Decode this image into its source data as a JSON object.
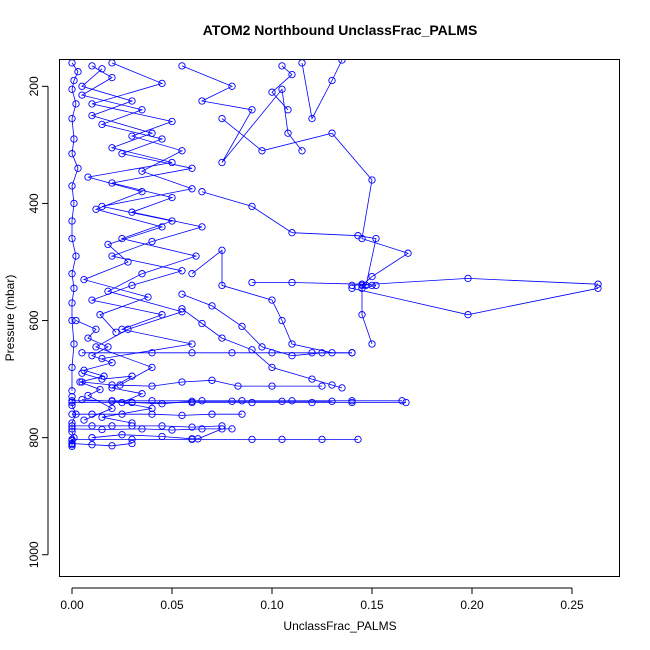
{
  "chart_data": {
    "type": "line",
    "title": "ATOM2 Northbound UnclassFrac_PALMS",
    "xlabel": "UnclassFrac_PALMS",
    "ylabel": "Pressure (mbar)",
    "xlim": [
      -0.006,
      0.274
    ],
    "ylim": [
      1038,
      155
    ],
    "y_reversed": true,
    "x_ticks": [
      0.0,
      0.05,
      0.1,
      0.15,
      0.2,
      0.25
    ],
    "x_tick_labels": [
      "0.00",
      "0.05",
      "0.10",
      "0.15",
      "0.20",
      "0.25"
    ],
    "y_ticks": [
      200,
      400,
      600,
      800,
      1000
    ],
    "y_tick_labels": [
      "200",
      "400",
      "600",
      "800",
      "1000"
    ],
    "grid": false,
    "legend": "none",
    "color": "#0000ff",
    "series": [
      {
        "x": [
          0.0,
          0.003,
          0.001,
          0.0,
          0.002,
          0.0,
          0.001,
          0.0,
          0.003,
          0.0,
          0.001,
          0.0,
          0.0,
          0.002,
          0.0,
          0.001,
          0.0,
          0.0,
          0.001,
          0.0,
          0.0
        ],
        "y": [
          160,
          175,
          190,
          205,
          230,
          255,
          290,
          315,
          340,
          370,
          400,
          430,
          460,
          490,
          520,
          545,
          570,
          600,
          640,
          680,
          720
        ]
      },
      {
        "x": [
          0.0,
          0.0,
          0.002,
          0.0,
          0.0,
          0.001,
          0.0,
          0.0,
          0.0,
          0.0
        ],
        "y": [
          730,
          745,
          760,
          775,
          790,
          800,
          805,
          810,
          812,
          815
        ]
      },
      {
        "x": [
          0.01,
          0.02,
          0.005,
          0.035,
          0.015,
          0.045,
          0.025,
          0.06,
          0.02,
          0.05,
          0.03,
          0.065,
          0.04,
          0.02,
          0.055,
          0.03,
          0.01,
          0.045,
          0.025,
          0.06,
          0.015
        ],
        "y": [
          165,
          185,
          215,
          240,
          265,
          290,
          315,
          340,
          365,
          390,
          415,
          440,
          465,
          490,
          515,
          540,
          565,
          590,
          615,
          640,
          665
        ]
      },
      {
        "x": [
          0.015,
          0.005,
          0.03,
          0.01,
          0.04,
          0.02,
          0.05,
          0.008,
          0.035,
          0.012,
          0.045,
          0.018,
          0.028,
          0.006,
          0.038,
          0.014,
          0.022
        ],
        "y": [
          170,
          200,
          225,
          250,
          280,
          305,
          330,
          355,
          380,
          410,
          440,
          470,
          500,
          530,
          560,
          590,
          620
        ]
      },
      {
        "x": [
          0.02,
          0.045,
          0.01,
          0.05,
          0.03,
          0.055,
          0.035,
          0.06,
          0.015,
          0.05,
          0.025,
          0.062,
          0.035,
          0.018,
          0.055,
          0.028,
          0.012,
          0.04,
          0.024
        ],
        "y": [
          160,
          195,
          230,
          260,
          285,
          310,
          345,
          375,
          405,
          430,
          460,
          490,
          520,
          550,
          585,
          615,
          645,
          680,
          710
        ]
      },
      {
        "x": [
          0.055,
          0.08,
          0.065,
          0.09,
          0.075,
          0.105,
          0.108,
          0.115
        ],
        "y": [
          165,
          200,
          225,
          240,
          330,
          205,
          280,
          310
        ]
      },
      {
        "x": [
          0.115,
          0.12,
          0.13,
          0.135
        ],
        "y": [
          160,
          255,
          190,
          155
        ]
      },
      {
        "x": [
          0.105,
          0.11,
          0.1,
          0.108
        ],
        "y": [
          165,
          180,
          210,
          240
        ]
      },
      {
        "x": [
          0.075,
          0.095,
          0.13,
          0.15,
          0.145,
          0.168,
          0.15,
          0.145,
          0.145,
          0.15
        ],
        "y": [
          255,
          310,
          280,
          360,
          460,
          485,
          525,
          540,
          590,
          640
        ]
      },
      {
        "x": [
          0.065,
          0.09,
          0.11,
          0.143,
          0.152,
          0.147,
          0.145,
          0.152
        ],
        "y": [
          380,
          405,
          450,
          455,
          460,
          540,
          545,
          540
        ]
      },
      {
        "x": [
          0.09,
          0.11,
          0.145,
          0.15
        ],
        "y": [
          535,
          535,
          538,
          540
        ]
      },
      {
        "x": [
          0.14,
          0.198,
          0.263
        ],
        "y": [
          540,
          528,
          538
        ]
      },
      {
        "x": [
          0.14,
          0.198,
          0.263
        ],
        "y": [
          545,
          590,
          545
        ]
      },
      {
        "x": [
          0.06,
          0.075,
          0.075,
          0.1,
          0.105,
          0.11,
          0.13
        ],
        "y": [
          520,
          480,
          540,
          565,
          600,
          640,
          655
        ]
      },
      {
        "x": [
          0.055,
          0.07,
          0.085,
          0.095,
          0.11,
          0.125,
          0.14
        ],
        "y": [
          555,
          575,
          610,
          645,
          660,
          655,
          655
        ]
      },
      {
        "x": [
          0.055,
          0.065,
          0.075,
          0.09,
          0.1,
          0.12,
          0.13,
          0.135
        ],
        "y": [
          580,
          605,
          630,
          650,
          680,
          700,
          710,
          715
        ]
      },
      {
        "x": [
          0.005,
          0.04,
          0.06,
          0.08,
          0.1,
          0.12,
          0.14
        ],
        "y": [
          655,
          655,
          655,
          655,
          655,
          655,
          655
        ]
      },
      {
        "x": [
          0.005,
          0.02,
          0.04,
          0.055,
          0.07,
          0.083,
          0.1,
          0.125
        ],
        "y": [
          705,
          710,
          712,
          705,
          702,
          712,
          712,
          712
        ]
      },
      {
        "x": [
          0.005,
          0.02,
          0.03,
          0.045,
          0.06,
          0.08,
          0.105,
          0.13
        ],
        "y": [
          735,
          738,
          740,
          742,
          738,
          738,
          738,
          738
        ]
      },
      {
        "x": [
          0.0,
          0.02,
          0.04,
          0.065,
          0.085,
          0.11,
          0.14,
          0.165
        ],
        "y": [
          737,
          737,
          737,
          737,
          737,
          737,
          737,
          737
        ]
      },
      {
        "x": [
          0.0,
          0.03,
          0.06,
          0.09,
          0.12,
          0.14,
          0.167
        ],
        "y": [
          740,
          740,
          740,
          740,
          740,
          740,
          740
        ]
      },
      {
        "x": [
          0.0,
          0.01,
          0.025,
          0.04,
          0.055,
          0.07,
          0.085
        ],
        "y": [
          760,
          760,
          760,
          760,
          762,
          760,
          760
        ]
      },
      {
        "x": [
          0.0,
          0.01,
          0.02,
          0.03,
          0.045,
          0.06,
          0.075
        ],
        "y": [
          780,
          780,
          780,
          780,
          780,
          782,
          780
        ]
      },
      {
        "x": [
          0.0,
          0.015,
          0.035,
          0.05,
          0.065,
          0.08
        ],
        "y": [
          785,
          786,
          785,
          787,
          785,
          785
        ]
      },
      {
        "x": [
          0.01,
          0.025,
          0.045,
          0.06,
          0.063,
          0.075
        ],
        "y": [
          800,
          795,
          798,
          802,
          802,
          785
        ]
      },
      {
        "x": [
          0.0,
          0.03,
          0.06,
          0.09,
          0.105,
          0.125,
          0.143
        ],
        "y": [
          803,
          803,
          803,
          803,
          803,
          803,
          803
        ]
      },
      {
        "x": [
          0.0,
          0.01,
          0.02,
          0.03
        ],
        "y": [
          810,
          812,
          814,
          810
        ]
      },
      {
        "x": [
          0.002,
          0.012,
          0.008,
          0.018,
          0.01,
          0.02,
          0.006,
          0.016,
          0.004,
          0.014,
          0.008,
          0.02,
          0.006
        ],
        "y": [
          600,
          615,
          630,
          645,
          660,
          672,
          685,
          695,
          705,
          718,
          728,
          750,
          770
        ]
      },
      {
        "x": [
          0.005,
          0.015,
          0.03,
          0.02,
          0.035,
          0.025,
          0.04,
          0.015,
          0.03
        ],
        "y": [
          690,
          700,
          695,
          715,
          725,
          740,
          750,
          765,
          775
        ]
      }
    ]
  }
}
